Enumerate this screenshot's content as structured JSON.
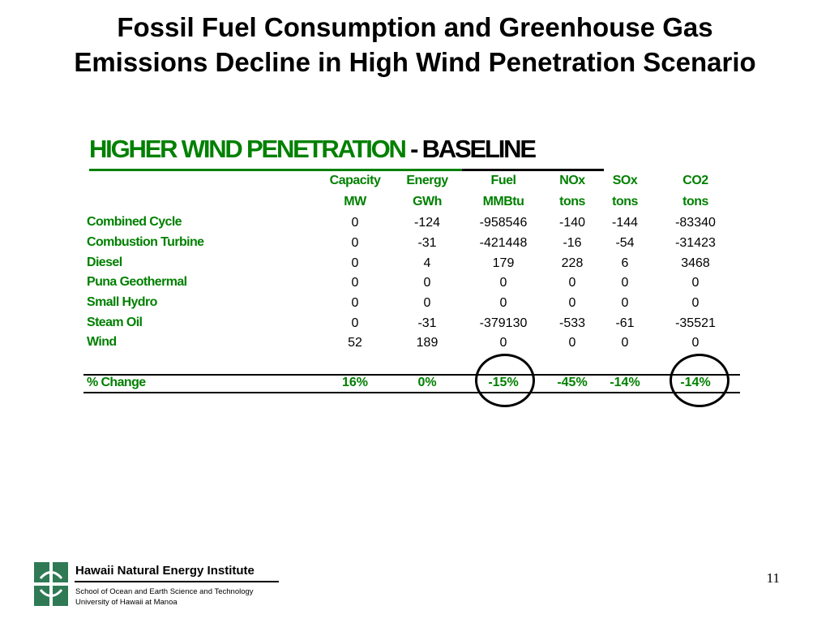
{
  "slide_title": {
    "line1": "Fossil Fuel Consumption and Greenhouse Gas",
    "line2": "Emissions Decline in High Wind Penetration Scenario"
  },
  "table_heading": {
    "part1": "HIGHER WIND PENETRATION",
    "separator": " - ",
    "part2": "BASELINE",
    "color_green": "#008000"
  },
  "table": {
    "columns": [
      {
        "name": "Capacity",
        "unit": "MW"
      },
      {
        "name": "Energy",
        "unit": "GWh"
      },
      {
        "name": "Fuel",
        "unit": "MMBtu"
      },
      {
        "name": "NOx",
        "unit": "tons"
      },
      {
        "name": "SOx",
        "unit": "tons"
      },
      {
        "name": "CO2",
        "unit": "tons"
      }
    ],
    "rows": [
      {
        "label": "Combined Cycle",
        "values": [
          "0",
          "-124",
          "-958546",
          "-140",
          "-144",
          "-83340"
        ]
      },
      {
        "label": "Combustion Turbine",
        "values": [
          "0",
          "-31",
          "-421448",
          "-16",
          "-54",
          "-31423"
        ]
      },
      {
        "label": "Diesel",
        "values": [
          "0",
          "4",
          "179",
          "228",
          "6",
          "3468"
        ]
      },
      {
        "label": "Puna Geothermal",
        "values": [
          "0",
          "0",
          "0",
          "0",
          "0",
          "0"
        ]
      },
      {
        "label": "Small Hydro",
        "values": [
          "0",
          "0",
          "0",
          "0",
          "0",
          "0"
        ]
      },
      {
        "label": "Steam Oil",
        "values": [
          "0",
          "-31",
          "-379130",
          "-533",
          "-61",
          "-35521"
        ]
      },
      {
        "label": "Wind",
        "values": [
          "52",
          "189",
          "0",
          "0",
          "0",
          "0"
        ]
      }
    ],
    "summary": {
      "label": "% Change",
      "values": [
        "16%",
        "0%",
        "-15%",
        "-45%",
        "-14%",
        "-14%"
      ]
    },
    "circled_columns": [
      "Fuel",
      "CO2"
    ]
  },
  "footer": {
    "institute": "Hawaii Natural Energy Institute",
    "school": "School of Ocean and Earth Science and Technology",
    "university": "University of Hawaii at Manoa",
    "page_number": "11",
    "logo_color": "#2f7a55"
  }
}
